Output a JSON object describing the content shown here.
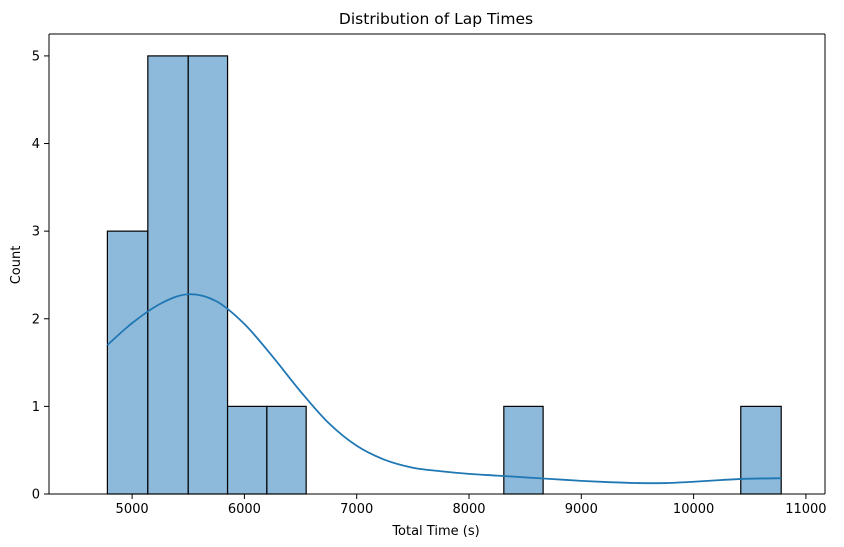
{
  "chart_data": {
    "type": "bar",
    "title": "Distribution of Lap Times",
    "xlabel": "Total Time (s)",
    "ylabel": "Count",
    "xlim": [
      4260,
      11170
    ],
    "ylim": [
      0,
      5.25
    ],
    "x_ticks": [
      5000,
      6000,
      7000,
      8000,
      9000,
      10000,
      11000
    ],
    "y_ticks": [
      0,
      1,
      2,
      3,
      4,
      5
    ],
    "bin_edges": [
      4780,
      5140,
      5500,
      5850,
      6200,
      6550,
      6900,
      7250,
      7610,
      7960,
      8310,
      8660,
      9010,
      9370,
      9720,
      10070,
      10420,
      10780
    ],
    "counts": [
      3,
      5,
      5,
      1,
      1,
      0,
      0,
      0,
      0,
      0,
      1,
      0,
      0,
      0,
      0,
      0,
      1
    ],
    "kde": {
      "x": [
        4780,
        5000,
        5250,
        5500,
        5750,
        6000,
        6250,
        6500,
        6750,
        7000,
        7250,
        7500,
        7750,
        8000,
        8250,
        8500,
        8750,
        9000,
        9250,
        9500,
        9750,
        10000,
        10250,
        10500,
        10780
      ],
      "y": [
        1.7,
        1.95,
        2.17,
        2.28,
        2.2,
        1.94,
        1.57,
        1.17,
        0.81,
        0.55,
        0.39,
        0.3,
        0.26,
        0.23,
        0.21,
        0.19,
        0.17,
        0.15,
        0.135,
        0.125,
        0.125,
        0.14,
        0.16,
        0.175,
        0.18
      ]
    },
    "grid": false,
    "colors": {
      "bar_fill": "#8db9db",
      "bar_edge": "#000000",
      "kde_line": "#1f77b4"
    }
  }
}
